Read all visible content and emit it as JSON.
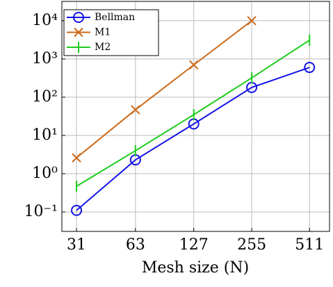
{
  "chart_data": {
    "type": "line",
    "xlabel": "Mesh size (N)",
    "x": [
      31,
      63,
      127,
      255,
      511
    ],
    "xscale": "log",
    "xbase": 2,
    "yscale": "log",
    "grid": true,
    "legend": "upper left",
    "xlim": [
      26,
      650
    ],
    "ylim": [
      0.031,
      32000
    ],
    "xticks": [
      31,
      63,
      127,
      255,
      511
    ],
    "yticks": [
      {
        "value": 0.1,
        "label": "10⁻¹"
      },
      {
        "value": 1,
        "label": "10⁰"
      },
      {
        "value": 10,
        "label": "10¹"
      },
      {
        "value": 100,
        "label": "10²"
      },
      {
        "value": 1000,
        "label": "10³"
      },
      {
        "value": 10000,
        "label": "10⁴"
      }
    ],
    "series": [
      {
        "name": "Bellman",
        "color": "#1414e6",
        "marker": "circle",
        "values": [
          0.11,
          2.3,
          20,
          180,
          600
        ]
      },
      {
        "name": "M1",
        "color": "#cc6a1a",
        "marker": "x",
        "values": [
          2.6,
          47,
          700,
          10000,
          null
        ]
      },
      {
        "name": "M2",
        "color": "#1ccc1c",
        "marker": "bar",
        "values": [
          0.47,
          4,
          35,
          320,
          3100
        ]
      }
    ]
  }
}
